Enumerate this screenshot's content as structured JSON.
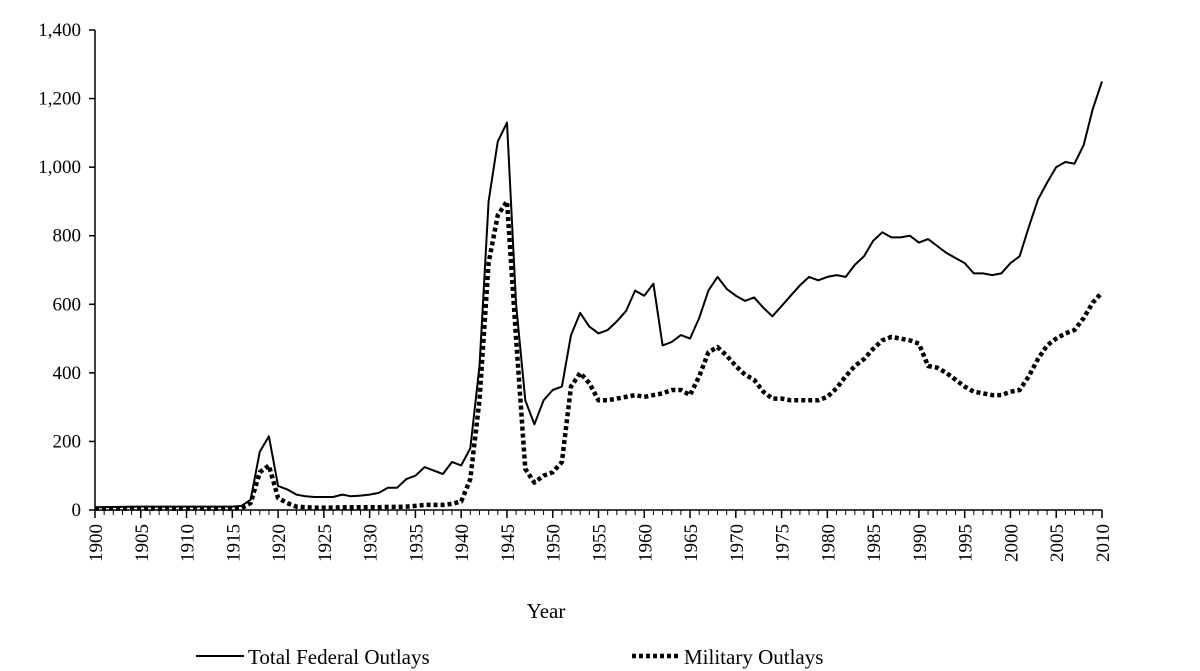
{
  "chart_data": {
    "type": "line",
    "title": "",
    "xlabel": "Year",
    "ylabel": "",
    "xlim": [
      1900,
      2010
    ],
    "ylim": [
      0,
      1400
    ],
    "y_ticks": [
      "0",
      "200",
      "400",
      "600",
      "800",
      "1,000",
      "1,200",
      "1,400"
    ],
    "x_ticks": [
      "1900",
      "1905",
      "1910",
      "1915",
      "1920",
      "1925",
      "1930",
      "1935",
      "1940",
      "1945",
      "1950",
      "1955",
      "1960",
      "1965",
      "1970",
      "1975",
      "1980",
      "1985",
      "1990",
      "1995",
      "2000",
      "2005",
      "2010"
    ],
    "grid": false,
    "legend_position": "bottom",
    "series": [
      {
        "name": "Total Federal Outlays",
        "style": "solid",
        "color": "#000000",
        "points": [
          [
            1900,
            8
          ],
          [
            1905,
            10
          ],
          [
            1910,
            10
          ],
          [
            1915,
            10
          ],
          [
            1916,
            12
          ],
          [
            1917,
            30
          ],
          [
            1918,
            170
          ],
          [
            1919,
            215
          ],
          [
            1920,
            70
          ],
          [
            1921,
            60
          ],
          [
            1922,
            45
          ],
          [
            1923,
            40
          ],
          [
            1924,
            38
          ],
          [
            1925,
            38
          ],
          [
            1926,
            38
          ],
          [
            1927,
            45
          ],
          [
            1928,
            40
          ],
          [
            1929,
            42
          ],
          [
            1930,
            45
          ],
          [
            1931,
            50
          ],
          [
            1932,
            65
          ],
          [
            1933,
            65
          ],
          [
            1934,
            90
          ],
          [
            1935,
            100
          ],
          [
            1936,
            125
          ],
          [
            1937,
            115
          ],
          [
            1938,
            105
          ],
          [
            1939,
            140
          ],
          [
            1940,
            130
          ],
          [
            1941,
            180
          ],
          [
            1942,
            420
          ],
          [
            1943,
            900
          ],
          [
            1944,
            1075
          ],
          [
            1945,
            1130
          ],
          [
            1946,
            600
          ],
          [
            1947,
            320
          ],
          [
            1948,
            250
          ],
          [
            1949,
            320
          ],
          [
            1950,
            350
          ],
          [
            1951,
            360
          ],
          [
            1952,
            510
          ],
          [
            1953,
            575
          ],
          [
            1954,
            535
          ],
          [
            1955,
            515
          ],
          [
            1956,
            525
          ],
          [
            1957,
            550
          ],
          [
            1958,
            580
          ],
          [
            1959,
            640
          ],
          [
            1960,
            625
          ],
          [
            1961,
            660
          ],
          [
            1962,
            480
          ],
          [
            1963,
            490
          ],
          [
            1964,
            510
          ],
          [
            1965,
            500
          ],
          [
            1966,
            560
          ],
          [
            1967,
            640
          ],
          [
            1968,
            680
          ],
          [
            1969,
            645
          ],
          [
            1970,
            625
          ],
          [
            1971,
            610
          ],
          [
            1972,
            620
          ],
          [
            1973,
            590
          ],
          [
            1974,
            565
          ],
          [
            1975,
            595
          ],
          [
            1976,
            625
          ],
          [
            1977,
            655
          ],
          [
            1978,
            680
          ],
          [
            1979,
            670
          ],
          [
            1980,
            680
          ],
          [
            1981,
            685
          ],
          [
            1982,
            680
          ],
          [
            1983,
            715
          ],
          [
            1984,
            740
          ],
          [
            1985,
            785
          ],
          [
            1986,
            810
          ],
          [
            1987,
            795
          ],
          [
            1988,
            795
          ],
          [
            1989,
            800
          ],
          [
            1990,
            780
          ],
          [
            1991,
            790
          ],
          [
            1992,
            770
          ],
          [
            1993,
            750
          ],
          [
            1994,
            735
          ],
          [
            1995,
            720
          ],
          [
            1996,
            690
          ],
          [
            1997,
            690
          ],
          [
            1998,
            685
          ],
          [
            1999,
            690
          ],
          [
            2000,
            720
          ],
          [
            2001,
            740
          ],
          [
            2002,
            825
          ],
          [
            2003,
            905
          ],
          [
            2004,
            955
          ],
          [
            2005,
            1000
          ],
          [
            2006,
            1015
          ],
          [
            2007,
            1010
          ],
          [
            2008,
            1065
          ],
          [
            2009,
            1170
          ],
          [
            2010,
            1250
          ]
        ]
      },
      {
        "name": "Military Outlays",
        "style": "dotted",
        "color": "#000000",
        "points": [
          [
            1900,
            4
          ],
          [
            1905,
            4
          ],
          [
            1910,
            4
          ],
          [
            1915,
            4
          ],
          [
            1916,
            5
          ],
          [
            1917,
            20
          ],
          [
            1918,
            110
          ],
          [
            1919,
            130
          ],
          [
            1920,
            35
          ],
          [
            1921,
            20
          ],
          [
            1922,
            10
          ],
          [
            1923,
            8
          ],
          [
            1924,
            7
          ],
          [
            1925,
            7
          ],
          [
            1926,
            7
          ],
          [
            1927,
            8
          ],
          [
            1928,
            8
          ],
          [
            1929,
            8
          ],
          [
            1930,
            8
          ],
          [
            1931,
            8
          ],
          [
            1932,
            9
          ],
          [
            1933,
            9
          ],
          [
            1934,
            10
          ],
          [
            1935,
            12
          ],
          [
            1936,
            15
          ],
          [
            1937,
            15
          ],
          [
            1938,
            15
          ],
          [
            1939,
            18
          ],
          [
            1940,
            25
          ],
          [
            1941,
            90
          ],
          [
            1942,
            320
          ],
          [
            1943,
            720
          ],
          [
            1944,
            860
          ],
          [
            1945,
            900
          ],
          [
            1946,
            500
          ],
          [
            1947,
            120
          ],
          [
            1948,
            80
          ],
          [
            1949,
            100
          ],
          [
            1950,
            110
          ],
          [
            1951,
            140
          ],
          [
            1952,
            360
          ],
          [
            1953,
            400
          ],
          [
            1954,
            370
          ],
          [
            1955,
            320
          ],
          [
            1956,
            320
          ],
          [
            1957,
            325
          ],
          [
            1958,
            330
          ],
          [
            1959,
            335
          ],
          [
            1960,
            330
          ],
          [
            1961,
            335
          ],
          [
            1962,
            340
          ],
          [
            1963,
            350
          ],
          [
            1964,
            350
          ],
          [
            1965,
            335
          ],
          [
            1966,
            390
          ],
          [
            1967,
            460
          ],
          [
            1968,
            475
          ],
          [
            1969,
            450
          ],
          [
            1970,
            420
          ],
          [
            1971,
            395
          ],
          [
            1972,
            380
          ],
          [
            1973,
            345
          ],
          [
            1974,
            325
          ],
          [
            1975,
            325
          ],
          [
            1976,
            320
          ],
          [
            1977,
            320
          ],
          [
            1978,
            320
          ],
          [
            1979,
            320
          ],
          [
            1980,
            330
          ],
          [
            1981,
            355
          ],
          [
            1982,
            390
          ],
          [
            1983,
            420
          ],
          [
            1984,
            440
          ],
          [
            1985,
            470
          ],
          [
            1986,
            495
          ],
          [
            1987,
            505
          ],
          [
            1988,
            500
          ],
          [
            1989,
            495
          ],
          [
            1990,
            485
          ],
          [
            1991,
            420
          ],
          [
            1992,
            415
          ],
          [
            1993,
            400
          ],
          [
            1994,
            380
          ],
          [
            1995,
            360
          ],
          [
            1996,
            345
          ],
          [
            1997,
            340
          ],
          [
            1998,
            335
          ],
          [
            1999,
            335
          ],
          [
            2000,
            345
          ],
          [
            2001,
            350
          ],
          [
            2002,
            390
          ],
          [
            2003,
            440
          ],
          [
            2004,
            480
          ],
          [
            2005,
            500
          ],
          [
            2006,
            515
          ],
          [
            2007,
            525
          ],
          [
            2008,
            560
          ],
          [
            2009,
            605
          ],
          [
            2010,
            635
          ]
        ]
      }
    ]
  }
}
